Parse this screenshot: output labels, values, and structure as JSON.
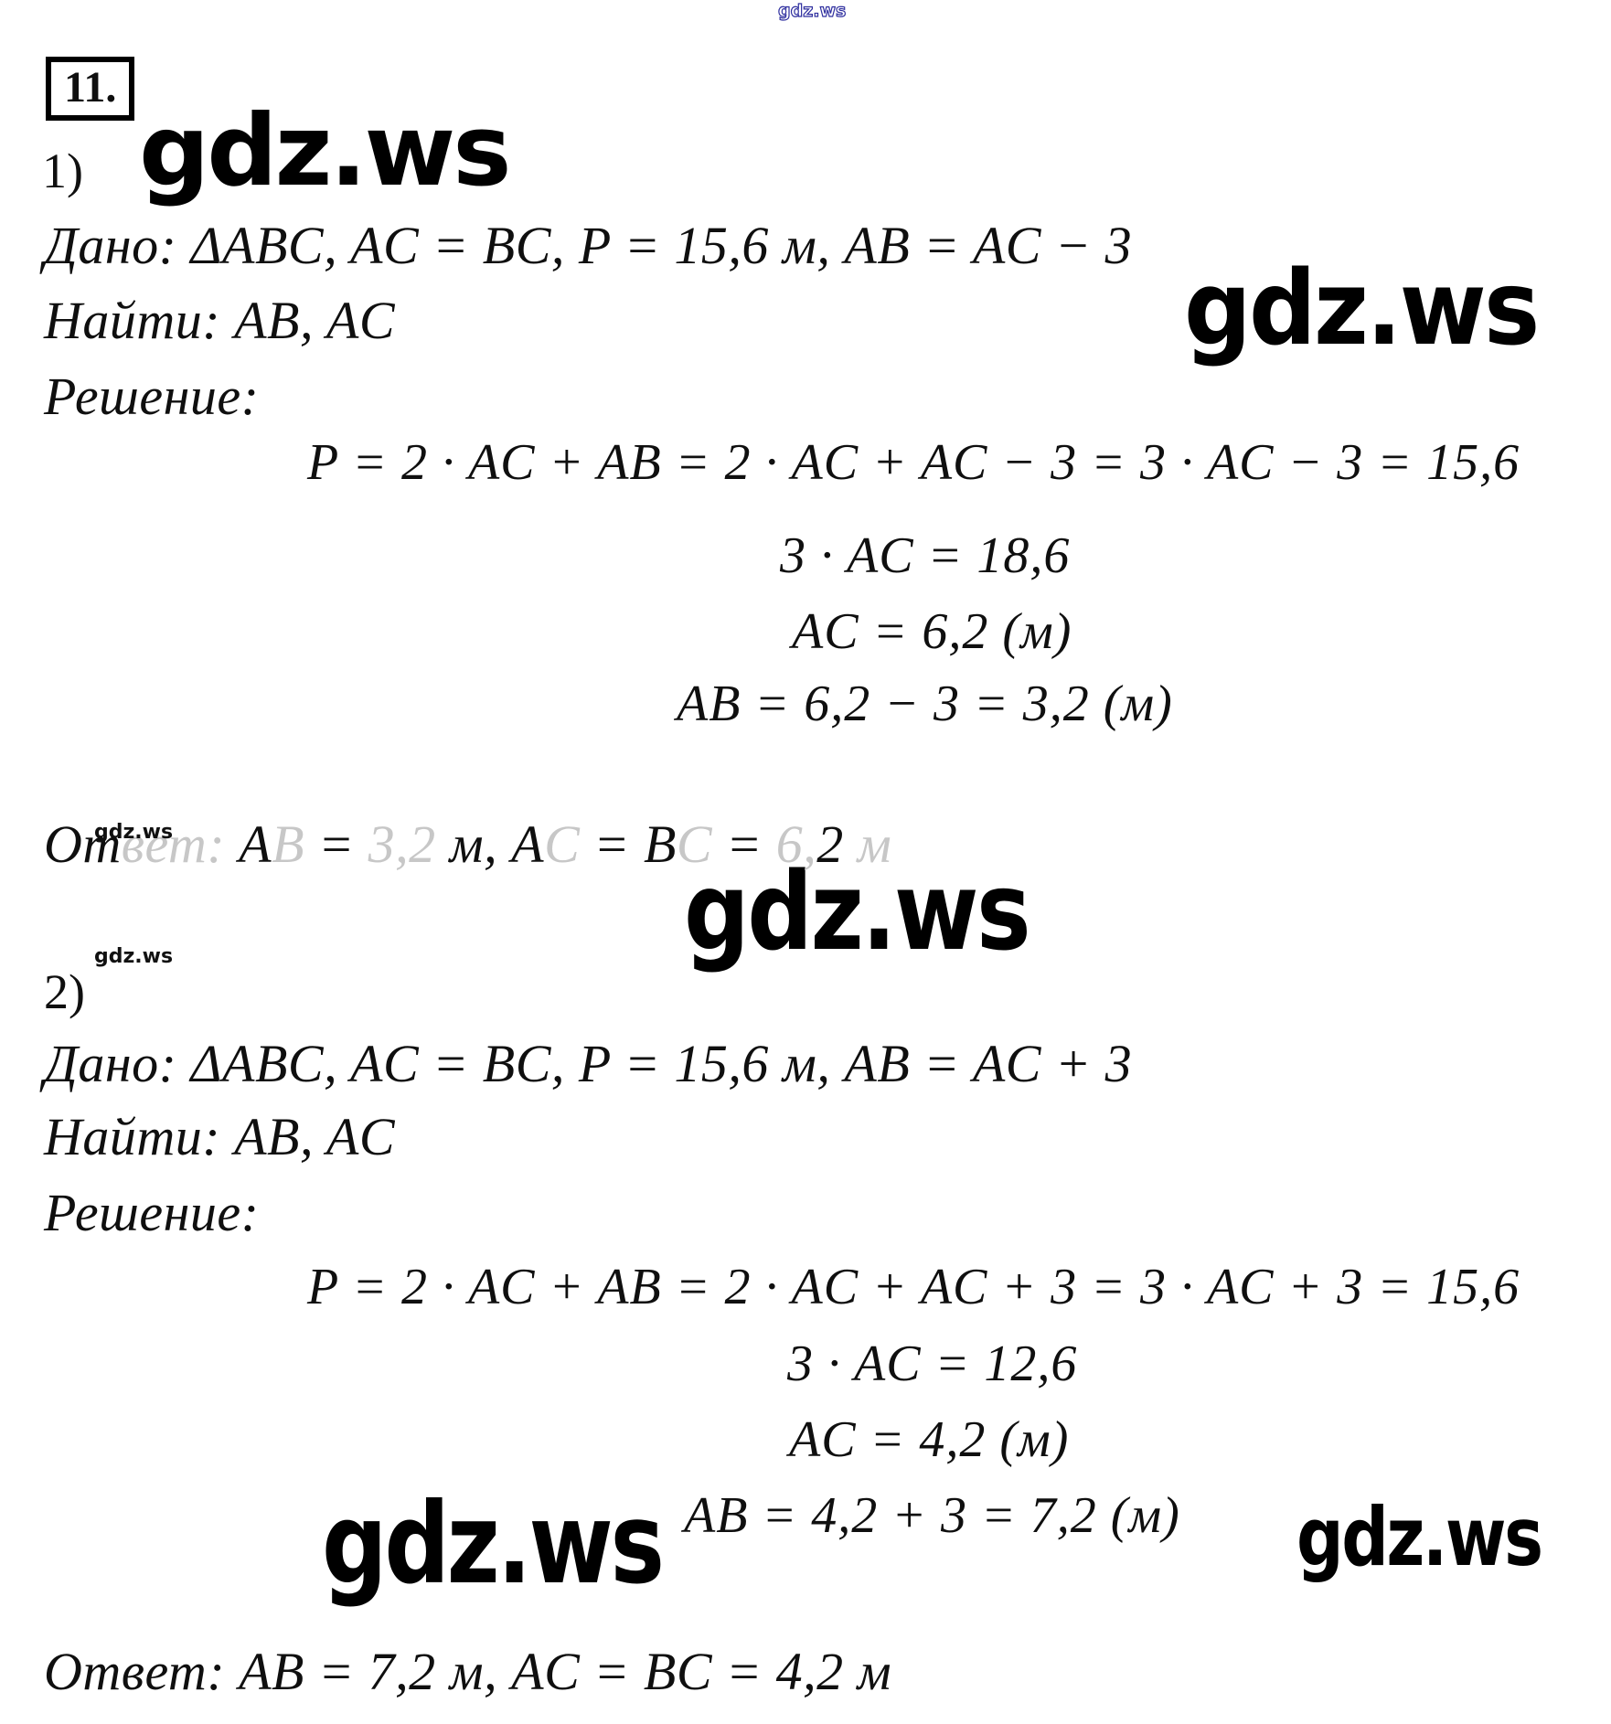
{
  "page_type": "math-homework-solution",
  "colors": {
    "text": "#0f0f0f",
    "watermark_black": "#000000",
    "watermark_outline_blue": "#2f2f9f",
    "faded_text": "#c7c7c7"
  },
  "watermark": {
    "text": "gdz.ws"
  },
  "task_number": "11.",
  "parts": [
    {
      "label": "1)",
      "given": "Дано: ΔABC, AC = BC,  P = 15,6 м,  AB = AC − 3",
      "find": "Найти: AB, AC",
      "solution_label": "Решение:",
      "equations": [
        "P = 2 · AC + AB = 2 · AC + AC − 3 = 3 · AC − 3 = 15,6",
        "3 · AC = 18,6",
        "AC = 6,2 (м)",
        "AB = 6,2 − 3 = 3,2 (м)"
      ],
      "answer_text": "Ответ: AB = 3,2 м,  AC = BC = 6,2 м",
      "answer_segments": [
        {
          "t": "От",
          "s": "black"
        },
        {
          "t": "вет:",
          "s": "faded"
        },
        {
          "t": " A",
          "s": "black"
        },
        {
          "t": "B",
          "s": "faded"
        },
        {
          "t": " = ",
          "s": "black"
        },
        {
          "t": "3,2",
          "s": "faded"
        },
        {
          "t": " м,  ",
          "s": "black"
        },
        {
          "t": "A",
          "s": "black"
        },
        {
          "t": "C",
          "s": "faded"
        },
        {
          "t": " = ",
          "s": "black"
        },
        {
          "t": "B",
          "s": "black"
        },
        {
          "t": "C",
          "s": "faded"
        },
        {
          "t": " = ",
          "s": "black"
        },
        {
          "t": "6,",
          "s": "faded"
        },
        {
          "t": "2",
          "s": "black"
        },
        {
          "t": " м",
          "s": "faded"
        }
      ]
    },
    {
      "label": "2)",
      "given": "Дано: ΔABC, AC = BC,  P = 15,6 м,  AB = AC + 3",
      "find": "Найти: AB, AC",
      "solution_label": "Решение:",
      "equations": [
        "P = 2 · AC + AB = 2 · AC + AC + 3 = 3 · AC + 3 = 15,6",
        "3 · AC = 12,6",
        "AC = 4,2 (м)",
        "AB = 4,2 + 3 = 7,2 (м)"
      ],
      "answer_text": "Ответ: AB = 7,2 м,  AC = BC = 4,2 м"
    }
  ]
}
